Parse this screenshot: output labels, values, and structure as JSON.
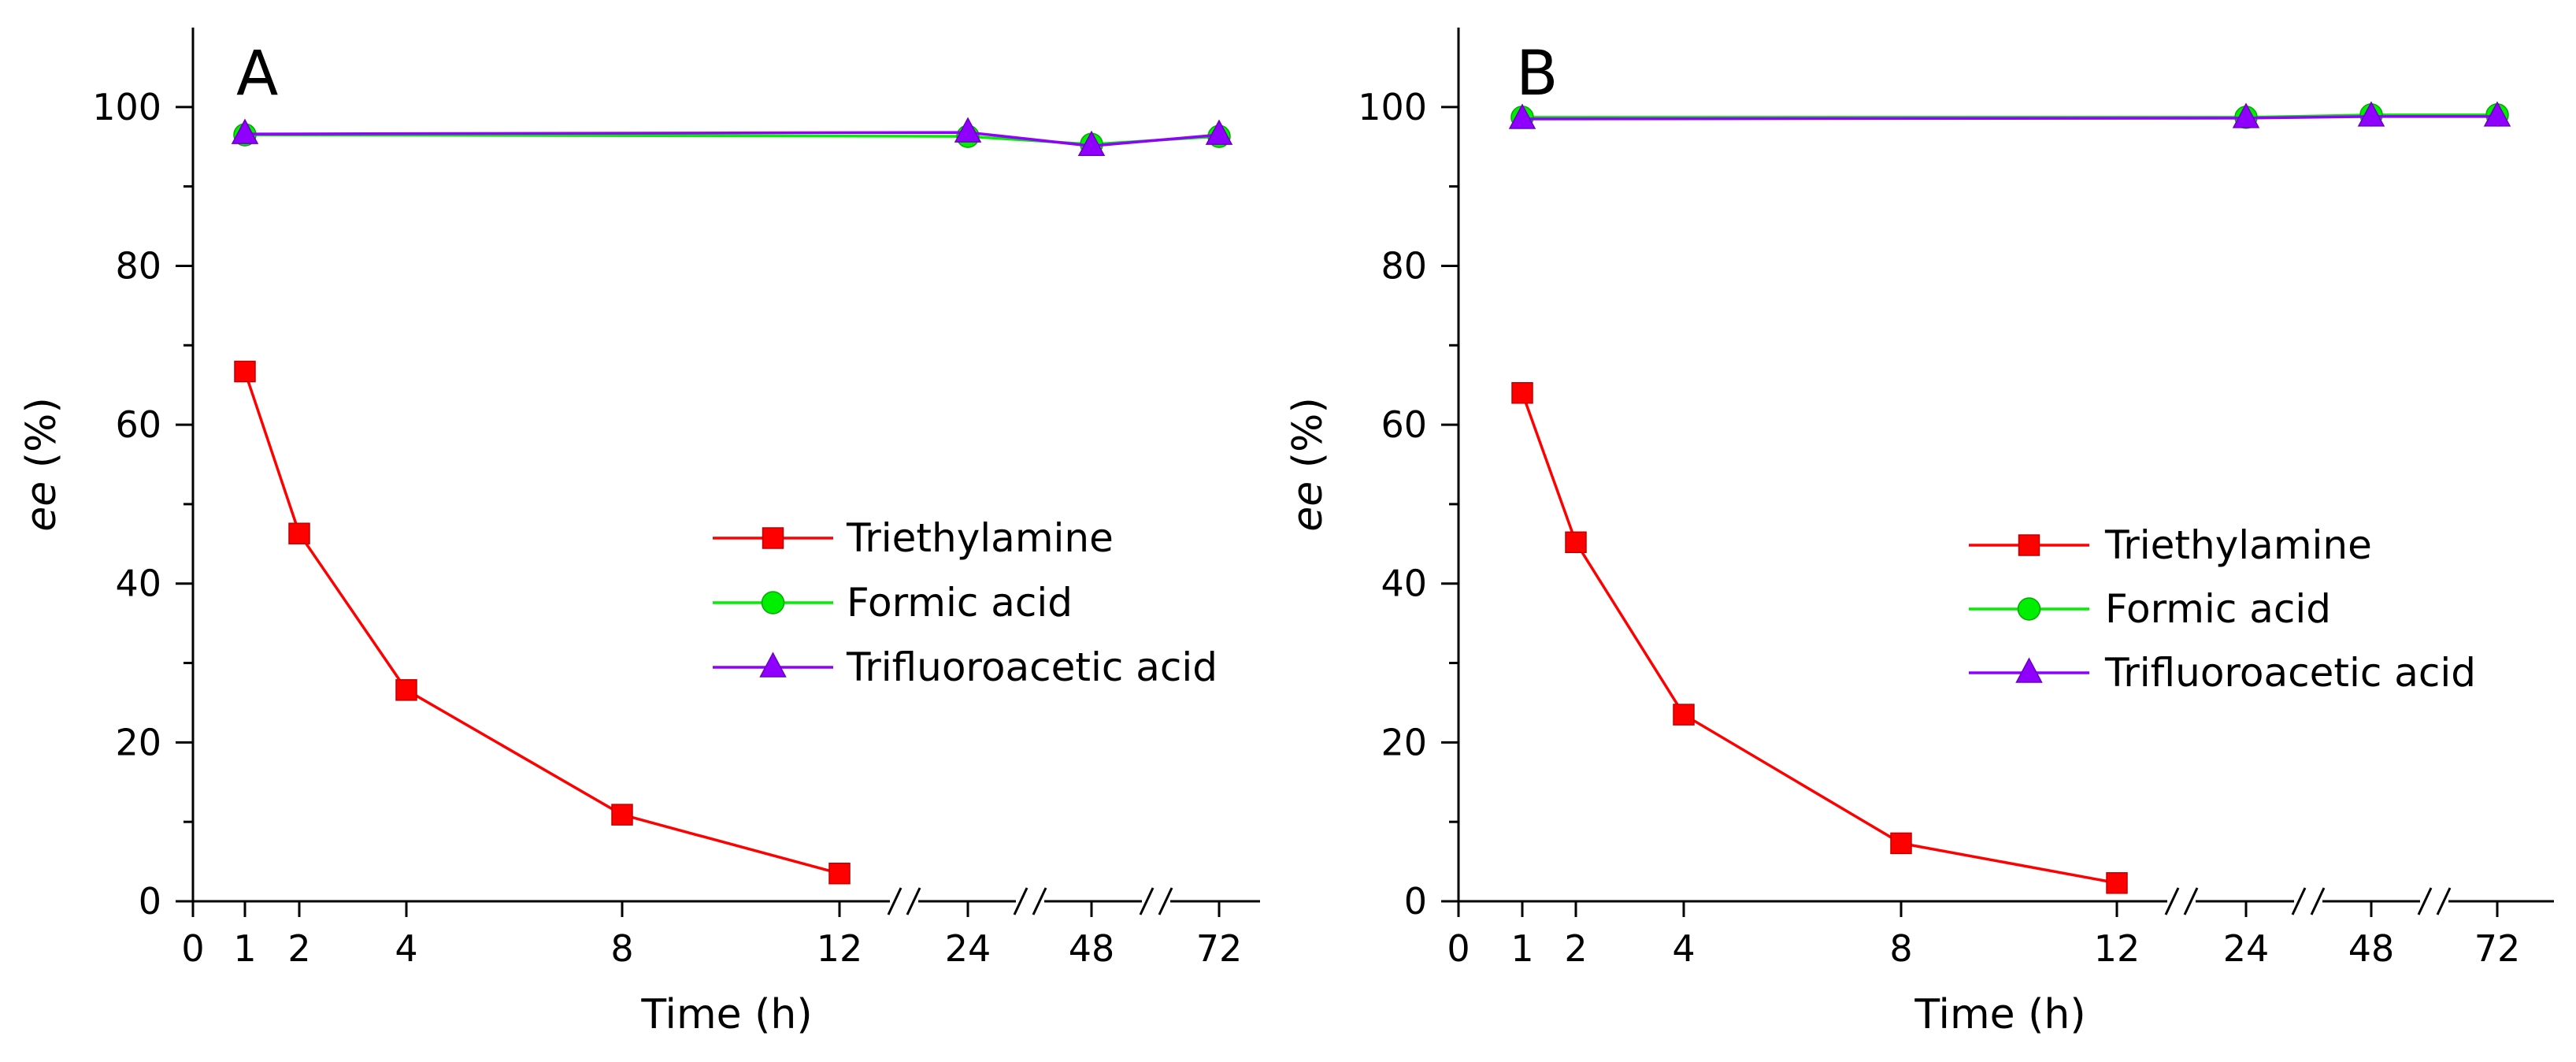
{
  "chart_data": [
    {
      "type": "line",
      "panel_label": "A",
      "x_categories": [
        "0",
        "1",
        "2",
        "4",
        "8",
        "12",
        "24",
        "48",
        "72"
      ],
      "x_axis_break_marker": "//",
      "xlabel": "Time (h)",
      "ylabel_italic": "ee",
      "ylabel_rest": " (%)",
      "ylim": [
        0,
        110
      ],
      "yticks": [
        "0",
        "20",
        "40",
        "60",
        "80",
        "100"
      ],
      "legend_position": "center-right",
      "series": [
        {
          "name": "Triethylamine",
          "color": "#ff0000",
          "marker": "square",
          "x": [
            "1",
            "2",
            "4",
            "8",
            "12"
          ],
          "y": [
            66.7,
            46.3,
            26.6,
            10.9,
            3.5
          ]
        },
        {
          "name": "Formic acid",
          "color": "#00ee00",
          "marker": "circle",
          "x": [
            "1",
            "24",
            "48",
            "72"
          ],
          "y": [
            96.5,
            96.3,
            95.3,
            96.3
          ]
        },
        {
          "name": "Trifluoroacetic acid",
          "color": "#8f00ff",
          "marker": "triangle",
          "x": [
            "1",
            "24",
            "48",
            "72"
          ],
          "y": [
            96.6,
            96.8,
            95.1,
            96.5
          ]
        }
      ]
    },
    {
      "type": "line",
      "panel_label": "B",
      "x_categories": [
        "0",
        "1",
        "2",
        "4",
        "8",
        "12",
        "24",
        "48",
        "72"
      ],
      "x_axis_break_marker": "//",
      "xlabel": "Time (h)",
      "ylabel_italic": "ee",
      "ylabel_rest": " (%)",
      "ylim": [
        0,
        110
      ],
      "yticks": [
        "0",
        "20",
        "40",
        "60",
        "80",
        "100"
      ],
      "legend_position": "center-right",
      "series": [
        {
          "name": "Triethylamine",
          "color": "#ff0000",
          "marker": "square",
          "x": [
            "1",
            "2",
            "4",
            "8",
            "12"
          ],
          "y": [
            64.0,
            45.2,
            23.5,
            7.3,
            2.3
          ]
        },
        {
          "name": "Formic acid",
          "color": "#00ee00",
          "marker": "circle",
          "x": [
            "1",
            "24",
            "48",
            "72"
          ],
          "y": [
            98.7,
            98.7,
            99.0,
            99.0
          ]
        },
        {
          "name": "Trifluoroacetic acid",
          "color": "#8f00ff",
          "marker": "triangle",
          "x": [
            "1",
            "24",
            "48",
            "72"
          ],
          "y": [
            98.5,
            98.6,
            98.8,
            98.8
          ]
        }
      ]
    }
  ]
}
